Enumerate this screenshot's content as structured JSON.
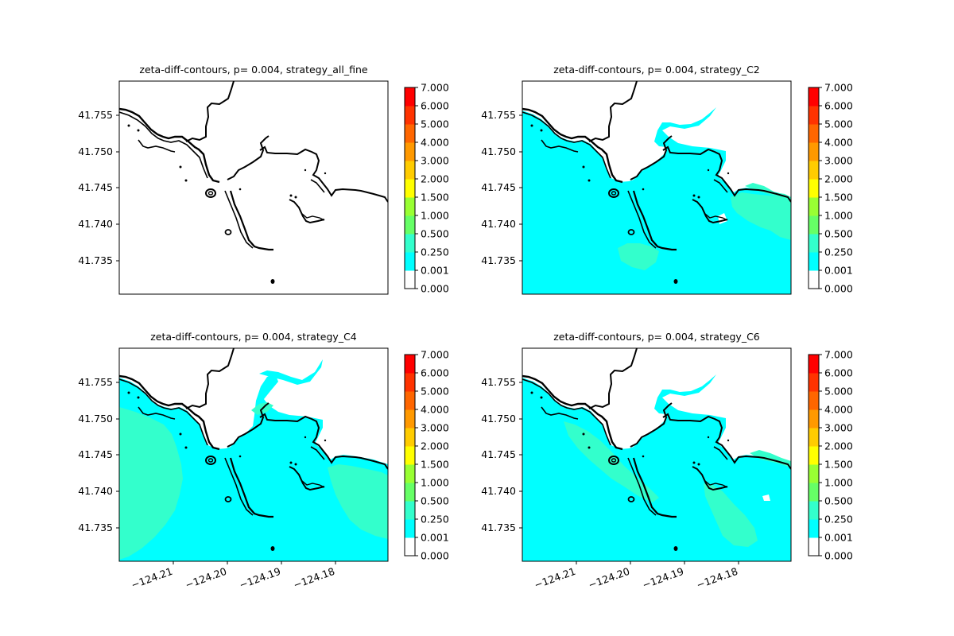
{
  "chart_data": {
    "type": "filled-contour-map",
    "panel_layout": "2x2",
    "axes": {
      "x_ticks": [
        "−124.21",
        "−124.20",
        "−124.19",
        "−124.18"
      ],
      "x_tick_values": [
        -124.21,
        -124.2,
        -124.19,
        -124.18
      ],
      "x_tick_rotation_deg": -20,
      "y_ticks": [
        "41.735",
        "41.740",
        "41.745",
        "41.750",
        "41.755"
      ],
      "y_tick_values": [
        41.735,
        41.74,
        41.745,
        41.75,
        41.755
      ],
      "xlim": [
        -124.2157,
        -124.1662
      ],
      "ylim": [
        41.7305,
        41.7598
      ]
    },
    "colorbar": {
      "levels": [
        "0.000",
        "0.001",
        "0.250",
        "0.500",
        "1.000",
        "1.500",
        "2.000",
        "3.000",
        "4.000",
        "5.000",
        "6.000",
        "7.000"
      ],
      "colors": [
        "#ffffff",
        "#00ffff",
        "#33ffcc",
        "#66ff66",
        "#99ff33",
        "#ffff00",
        "#ffcc00",
        "#ff9900",
        "#ff6600",
        "#ff3300",
        "#ff0000"
      ]
    },
    "panels": [
      {
        "title": "zeta-diff-contours, p= 0.004, strategy_all_fine",
        "show_x_ticks": false,
        "fill": "none",
        "patches": []
      },
      {
        "title": "zeta-diff-contours, p= 0.004, strategy_C2",
        "show_x_ticks": false,
        "fill": "0.001-0.250",
        "patches": [
          {
            "level": "0.250-0.500",
            "region": "offshore south of jetty"
          },
          {
            "level": "0.250-0.500",
            "region": "east coast"
          }
        ]
      },
      {
        "title": "zeta-diff-contours, p= 0.004, strategy_C4",
        "show_x_ticks": true,
        "fill": "0.001-0.250",
        "patches": [
          {
            "level": "0.250-0.500",
            "region": "west offshore band"
          },
          {
            "level": "0.250-0.500",
            "region": "east offshore"
          }
        ]
      },
      {
        "title": "zeta-diff-contours, p= 0.004, strategy_C6",
        "show_x_ticks": true,
        "fill": "0.001-0.250",
        "patches": [
          {
            "level": "0.250-0.500",
            "region": "near-shore diagonal"
          },
          {
            "level": "0.250-0.500",
            "region": "south-east offshore"
          }
        ]
      }
    ]
  }
}
